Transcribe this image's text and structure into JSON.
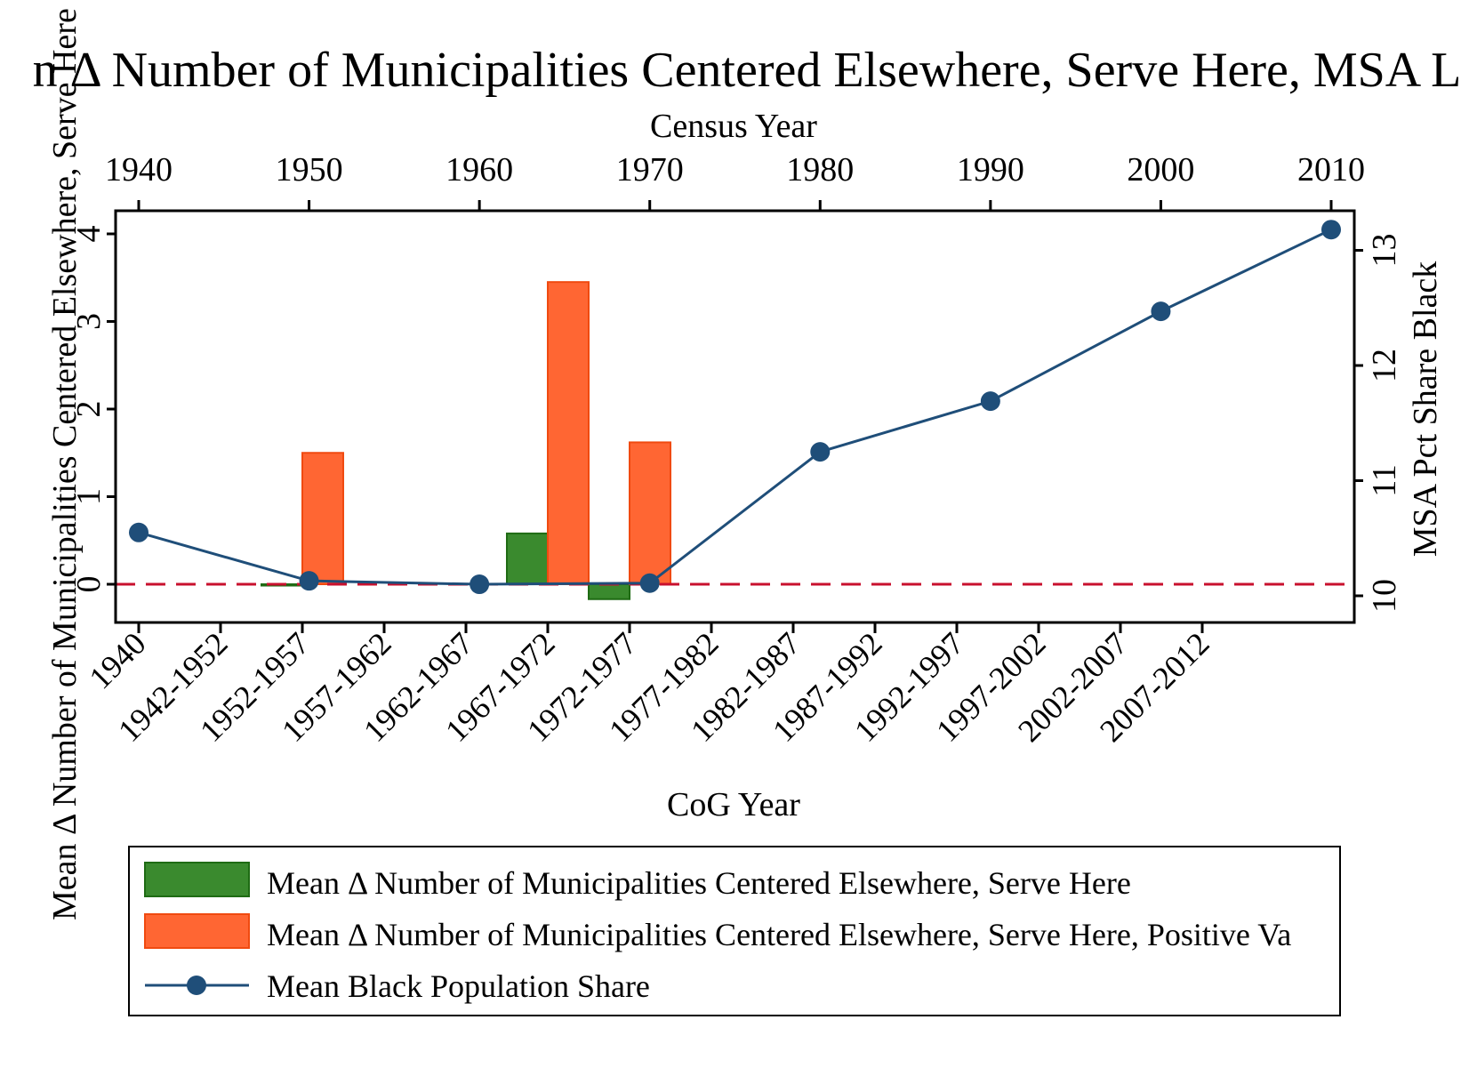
{
  "chart_data": {
    "type": "bar+line",
    "title": "Mean Δ Number of Municipalities Centered Elsewhere, Serve Here, MSA Level",
    "title_visible": "n Δ Number of Municipalities Centered Elsewhere, Serve Here, MSA L",
    "xlabel_bottom": "CoG Year",
    "xlabel_top": "Census Year",
    "ylabel_left": "Mean Δ Number of Municipalities Centered Elsewhere, Serve Here",
    "ylabel_right": "MSA Pct Share Black",
    "bottom_categories": [
      "1940",
      "1942-1952",
      "1952-1957",
      "1957-1962",
      "1962-1967",
      "1967-1972",
      "1972-1977",
      "1977-1982",
      "1982-1987",
      "1987-1992",
      "1992-1997",
      "1997-2002",
      "2002-2007",
      "2007-2012"
    ],
    "top_ticks": [
      "1940",
      "1950",
      "1960",
      "1970",
      "1980",
      "1990",
      "2000",
      "2010"
    ],
    "top_range": [
      1940,
      2010
    ],
    "left_ticks": [
      "0",
      "1",
      "2",
      "3",
      "4"
    ],
    "left_tick_values": [
      0,
      1,
      2,
      3,
      4
    ],
    "left_range": [
      -0.45,
      4.2
    ],
    "right_ticks": [
      "10",
      "11",
      "12",
      "13"
    ],
    "right_tick_values": [
      10,
      11,
      12,
      13
    ],
    "right_range": [
      9.95,
      13.4
    ],
    "reference_line": {
      "axis": "left",
      "value": 0,
      "style": "dashed",
      "color": "#c8102e"
    },
    "series": [
      {
        "name": "Mean Δ Number of Municipalities Centered Elsewhere, Serve Here",
        "kind": "bar",
        "color": "#3a8a2e",
        "edge": "#1f6b14",
        "points": [
          {
            "category": "1952-1957",
            "value": 0.0
          },
          {
            "category": "1967-1972",
            "value": 0.58
          },
          {
            "category": "1972-1977",
            "value": -0.17
          }
        ]
      },
      {
        "name": "Mean Δ Number of Municipalities Centered Elsewhere, Serve Here, Positive Values",
        "display_name": "Mean Δ Number of Municipalities Centered Elsewhere, Serve Here, Positive Va",
        "kind": "bar",
        "color": "#ff6633",
        "edge": "#f04a10",
        "points": [
          {
            "category": "1952-1957",
            "value": 1.5
          },
          {
            "category": "1967-1972",
            "value": 3.45
          },
          {
            "category": "1972-1977",
            "value": 1.62
          }
        ]
      },
      {
        "name": "Mean Black Population Share",
        "kind": "line",
        "axis": "right",
        "color": "#1f4e79",
        "x": [
          1940,
          1950,
          1960,
          1970,
          1980,
          1990,
          2000,
          2010
        ],
        "y": [
          10.55,
          10.13,
          10.1,
          10.11,
          11.25,
          11.69,
          12.47,
          13.18
        ]
      }
    ]
  },
  "legend": {
    "items": [
      "Mean Δ Number of Municipalities Centered Elsewhere, Serve Here",
      "Mean Δ Number of Municipalities Centered Elsewhere, Serve Here, Positive Va",
      "Mean Black Population Share"
    ]
  }
}
